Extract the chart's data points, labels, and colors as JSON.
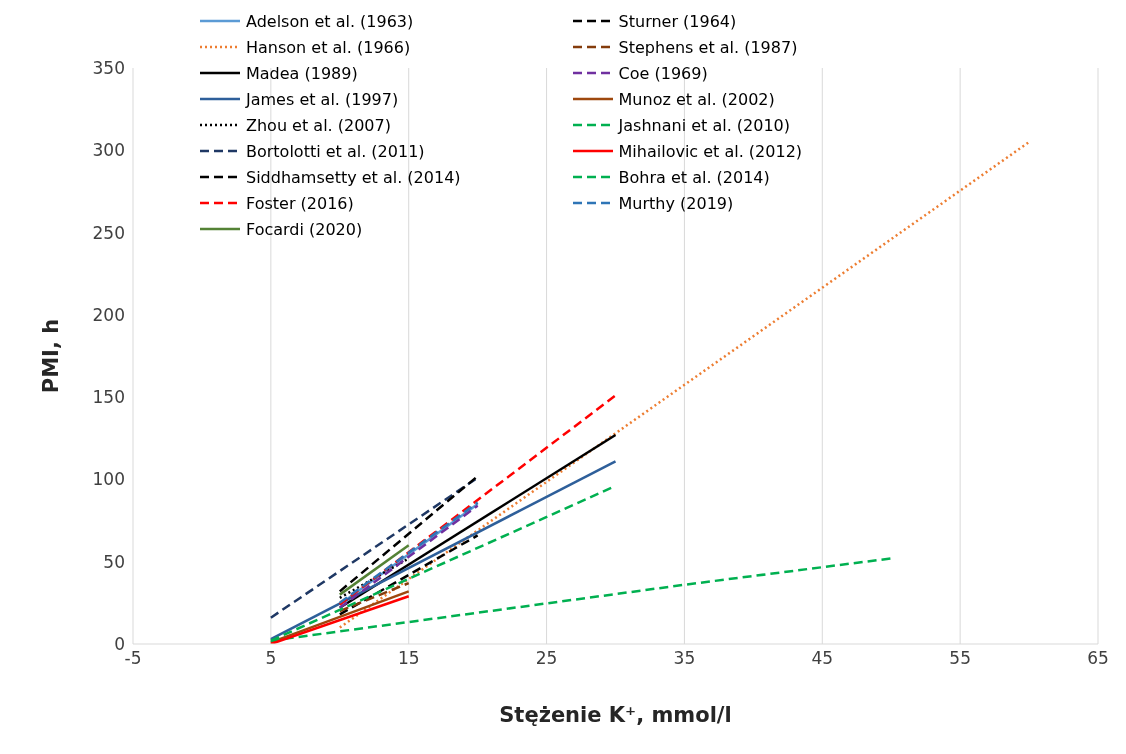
{
  "chart_data": {
    "type": "line",
    "xlabel": "Stężenie K⁺, mmol/l",
    "ylabel": "PMI, h",
    "xlim": [
      -5,
      65
    ],
    "xticks": [
      -5,
      5,
      15,
      25,
      35,
      45,
      55,
      65
    ],
    "ylim": [
      0,
      350
    ],
    "yticks": [
      0,
      50,
      100,
      150,
      200,
      250,
      300,
      350
    ],
    "grid": "x",
    "legend": "top left",
    "series": [
      {
        "name": "Adelson et al. (1963)",
        "color": "#5b9bd5",
        "line_style": "solid",
        "x": [
          10,
          20
        ],
        "values": [
          24,
          85
        ]
      },
      {
        "name": "Hanson et al. (1966)",
        "color": "#ed7d31",
        "line_style": "dotted",
        "x": [
          10,
          60
        ],
        "values": [
          10,
          305
        ]
      },
      {
        "name": "Madea (1989)",
        "color": "#000000",
        "line_style": "solid",
        "x": [
          10,
          30
        ],
        "values": [
          22,
          127
        ]
      },
      {
        "name": "James et al. (1997)",
        "color": "#2e5f9a",
        "line_style": "solid",
        "x": [
          5,
          30
        ],
        "values": [
          3,
          111
        ]
      },
      {
        "name": "Zhou et al. (2007)",
        "color": "#000000",
        "line_style": "dotted",
        "x": [
          10,
          15
        ],
        "values": [
          28,
          52
        ]
      },
      {
        "name": "Bortolotti et al. (2011)",
        "color": "#1f3864",
        "line_style": "dashed",
        "x": [
          5,
          20
        ],
        "values": [
          16,
          101
        ]
      },
      {
        "name": "Siddhamsetty et al. (2014)",
        "color": "#000000",
        "line_style": "dashed",
        "x": [
          10,
          20
        ],
        "values": [
          18,
          66
        ]
      },
      {
        "name": "Foster (2016)",
        "color": "#ff0000",
        "line_style": "dashed",
        "x": [
          10,
          30
        ],
        "values": [
          24,
          151
        ]
      },
      {
        "name": "Focardi (2020)",
        "color": "#548235",
        "line_style": "solid",
        "x": [
          10,
          15
        ],
        "values": [
          30,
          60
        ]
      },
      {
        "name": "Sturner (1964)",
        "color": "#000000",
        "line_style": "dashed",
        "x": [
          10,
          20
        ],
        "values": [
          32,
          102
        ]
      },
      {
        "name": "Stephens et al. (1987)",
        "color": "#843c0c",
        "line_style": "dashed",
        "x": [
          10,
          15
        ],
        "values": [
          20,
          37
        ]
      },
      {
        "name": "Coe (1969)",
        "color": "#7030a0",
        "line_style": "dashed",
        "x": [
          10,
          20
        ],
        "values": [
          22,
          84
        ]
      },
      {
        "name": "Munoz et al. (2002)",
        "color": "#9e480e",
        "line_style": "solid",
        "x": [
          5,
          15
        ],
        "values": [
          1,
          32
        ]
      },
      {
        "name": "Jashnani et al. (2010)",
        "color": "#00b050",
        "line_style": "dashed",
        "x": [
          5,
          20,
          35,
          50
        ],
        "values": [
          2,
          19,
          36,
          52
        ]
      },
      {
        "name": "Mihailovic et al. (2012)",
        "color": "#ff0000",
        "line_style": "solid",
        "x": [
          5,
          15
        ],
        "values": [
          0,
          29
        ]
      },
      {
        "name": "Bohra et al. (2014)",
        "color": "#00b050",
        "line_style": "dashed",
        "x": [
          5,
          30
        ],
        "values": [
          2,
          96
        ]
      },
      {
        "name": "Murthy (2019)",
        "color": "#2e75b6",
        "line_style": "dashed",
        "x": [
          10,
          20
        ],
        "values": [
          25,
          86
        ]
      }
    ]
  }
}
